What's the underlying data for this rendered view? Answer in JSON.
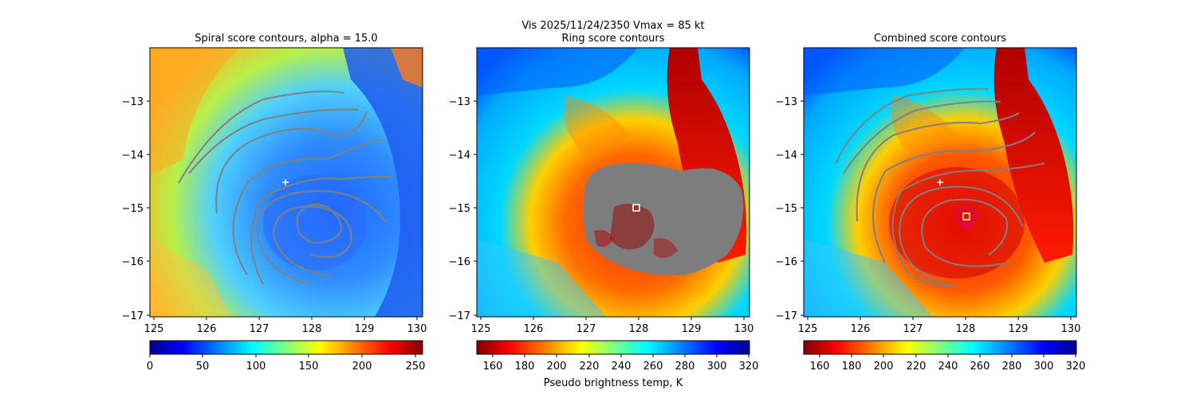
{
  "figure": {
    "suptitle": "Vis  2025/11/24/2350    Vmax = 85 kt"
  },
  "chart_data": [
    {
      "type": "heatmap",
      "title": "Spiral score contours, alpha = 15.0",
      "xlim": [
        124.9,
        130.1
      ],
      "ylim": [
        -17.0,
        -12.0
      ],
      "x_ticks": [
        "125",
        "126",
        "127",
        "128",
        "129",
        "130"
      ],
      "y_ticks": [
        "−13",
        "−14",
        "−15",
        "−16",
        "−17"
      ],
      "colorbar": {
        "min": 0,
        "max": 255,
        "ticks": [
          "0",
          "50",
          "100",
          "150",
          "200",
          "250"
        ],
        "colormap": "jet",
        "label": ""
      },
      "markers": [
        {
          "kind": "plus",
          "x": 127.5,
          "y": -14.5,
          "color": "#ffffff"
        }
      ],
      "contour_color": "#808080",
      "overlay_mask": null
    },
    {
      "type": "heatmap",
      "title": "Ring score contours",
      "xlim": [
        124.9,
        130.1
      ],
      "ylim": [
        -17.0,
        -12.0
      ],
      "x_ticks": [
        "125",
        "126",
        "127",
        "128",
        "129",
        "130"
      ],
      "y_ticks": [
        "−13",
        "−14",
        "−15",
        "−16",
        "−17"
      ],
      "colorbar": {
        "min": 150,
        "max": 320,
        "ticks": [
          "160",
          "180",
          "200",
          "220",
          "240",
          "260",
          "280",
          "300",
          "320"
        ],
        "colormap": "jet_r",
        "label": "Pseudo brightness temp, K"
      },
      "markers": [
        {
          "kind": "square",
          "x": 128.0,
          "y": -15.0,
          "color": "#ffffff"
        }
      ],
      "contour_color": "#808080",
      "overlay_mask": "gray ring score mask"
    },
    {
      "type": "heatmap",
      "title": "Combined score contours",
      "xlim": [
        124.9,
        130.1
      ],
      "ylim": [
        -17.0,
        -12.0
      ],
      "x_ticks": [
        "125",
        "126",
        "127",
        "128",
        "129",
        "130"
      ],
      "y_ticks": [
        "−13",
        "−14",
        "−15",
        "−16",
        "−17"
      ],
      "colorbar": {
        "min": 150,
        "max": 320,
        "ticks": [
          "160",
          "180",
          "200",
          "220",
          "240",
          "260",
          "280",
          "300",
          "320"
        ],
        "colormap": "jet_r",
        "label": ""
      },
      "markers": [
        {
          "kind": "plus",
          "x": 127.5,
          "y": -14.5,
          "color": "#ffffff"
        },
        {
          "kind": "square",
          "x": 128.0,
          "y": -15.15,
          "color": "#ffffff"
        },
        {
          "kind": "circle",
          "x": 128.0,
          "y": -15.15,
          "color": "#e0007f"
        }
      ],
      "contour_color": "#808080",
      "overlay_mask": null
    }
  ]
}
